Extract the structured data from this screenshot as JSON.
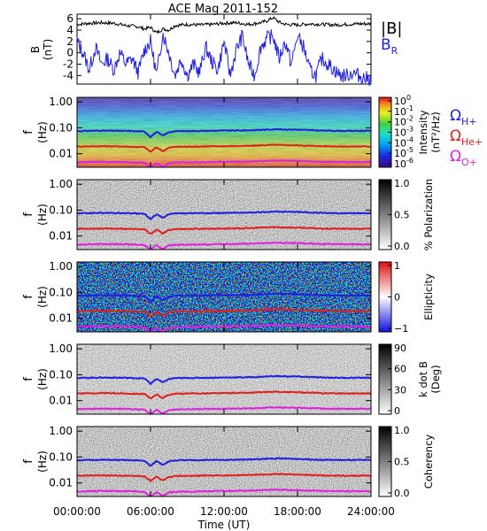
{
  "chart_data": [
    {
      "panel": "B",
      "type": "line",
      "title": "ACE Mag 2011-152",
      "ylabel": "B",
      "yunit": "(nT)",
      "ylim": [
        -5.5,
        6.8
      ],
      "yticks": [
        "6",
        "4",
        "2",
        "0",
        "-2",
        "-4"
      ],
      "ytick_values": [
        6,
        4,
        2,
        0,
        -2,
        -4
      ],
      "legend": [
        {
          "label": "|B|",
          "color": "#000000"
        },
        {
          "label": "B",
          "sub": "R",
          "color": "#1f1fe0"
        }
      ],
      "series": [
        {
          "name": "|B|",
          "color": "#000000",
          "x_hours": [
            0,
            1,
            2,
            3,
            4,
            5,
            5.5,
            6,
            6.5,
            7,
            7.5,
            8,
            9,
            10,
            11,
            12,
            13,
            14,
            15,
            15.5,
            16,
            16.5,
            17,
            18,
            19,
            20,
            21,
            22,
            23,
            24
          ],
          "values": [
            5.0,
            5.2,
            5.3,
            5.2,
            4.8,
            4.6,
            4.2,
            4.5,
            3.5,
            4.2,
            4.0,
            4.8,
            5.0,
            4.9,
            5.0,
            5.2,
            5.3,
            5.0,
            5.3,
            5.6,
            6.2,
            5.4,
            5.0,
            4.9,
            5.1,
            5.0,
            4.9,
            5.0,
            5.1,
            5.1
          ]
        },
        {
          "name": "BR",
          "color": "#1f1fe0",
          "x_hours": [
            0,
            0.5,
            1,
            1.5,
            2,
            2.5,
            3,
            3.5,
            4,
            4.5,
            5,
            5.5,
            6,
            6.5,
            7,
            7.5,
            8,
            8.5,
            9,
            9.5,
            10,
            10.5,
            11,
            11.5,
            12,
            12.5,
            13,
            13.5,
            14,
            14.5,
            15,
            15.5,
            16,
            16.5,
            17,
            17.5,
            18,
            18.5,
            19,
            19.5,
            20,
            20.5,
            21,
            21.5,
            22,
            22.5,
            23,
            23.5,
            24
          ],
          "values": [
            2.0,
            0.0,
            -3.0,
            1.0,
            -2.0,
            -1.0,
            -3.0,
            0.0,
            -2.0,
            -1.0,
            -3.5,
            0.5,
            2.0,
            -4.0,
            3.5,
            0.0,
            -4.0,
            -1.0,
            -4.0,
            -2.0,
            -3.5,
            1.0,
            -1.5,
            -3.0,
            2.0,
            -4.0,
            0.5,
            3.0,
            -2.0,
            -4.0,
            1.0,
            2.5,
            3.0,
            -1.0,
            2.0,
            -2.0,
            3.0,
            1.0,
            -3.0,
            -4.0,
            -1.0,
            -2.0,
            -3.0,
            -4.0,
            -4.0,
            -3.5,
            -4.0,
            -4.5,
            -4.5
          ]
        }
      ]
    },
    {
      "panel": "intensity",
      "type": "heatmap",
      "ylabel": "f",
      "yunit": "(Hz)",
      "yticks": [
        "1.00",
        "0.10",
        "0.01"
      ],
      "colorbar": {
        "label": "Intensity",
        "unit": "(nT²/Hz)",
        "ticks": [
          {
            "base": "10",
            "exp": "0"
          },
          {
            "base": "10",
            "exp": "-1"
          },
          {
            "base": "10",
            "exp": "-2"
          },
          {
            "base": "10",
            "exp": "-3"
          },
          {
            "base": "10",
            "exp": "-4"
          },
          {
            "base": "10",
            "exp": "-5"
          },
          {
            "base": "10",
            "exp": "-6"
          }
        ]
      },
      "legend": [
        {
          "label": "Ω",
          "sub": "H+",
          "color": "#1f1fe0"
        },
        {
          "label": "Ω",
          "sub": "He+",
          "color": "#e01f1f"
        },
        {
          "label": "Ω",
          "sub": "O+",
          "color": "#e020e0"
        }
      ]
    },
    {
      "panel": "polarization",
      "type": "heatmap",
      "ylabel": "f",
      "yunit": "(Hz)",
      "yticks": [
        "1.00",
        "0.10",
        "0.01"
      ],
      "colorbar": {
        "label": "% Polarization",
        "ticks": [
          "1.0",
          "0.5",
          "0.0"
        ]
      }
    },
    {
      "panel": "ellipticity",
      "type": "heatmap",
      "ylabel": "f",
      "yunit": "(Hz)",
      "yticks": [
        "1.00",
        "0.10",
        "0.01"
      ],
      "colorbar": {
        "label": "Ellipticity",
        "ticks": [
          "1",
          "0",
          "−1"
        ]
      }
    },
    {
      "panel": "kdotb",
      "type": "heatmap",
      "ylabel": "f",
      "yunit": "(Hz)",
      "yticks": [
        "1.00",
        "0.10",
        "0.01"
      ],
      "colorbar": {
        "label": "k dot B",
        "unit": "(Deg)",
        "ticks": [
          "90",
          "60",
          "30",
          "0"
        ]
      }
    },
    {
      "panel": "coherency",
      "type": "heatmap",
      "ylabel": "f",
      "yunit": "(Hz)",
      "yticks": [
        "1.00",
        "0.10",
        "0.01"
      ],
      "colorbar": {
        "label": "Coherency",
        "ticks": [
          "1.0",
          "0.5",
          "0.0"
        ]
      }
    }
  ],
  "gyrofrequency_lines": {
    "x_hours": [
      0,
      2,
      4,
      5.5,
      6,
      6.5,
      7,
      7.5,
      8,
      10,
      12,
      14,
      15,
      16,
      18,
      20,
      22,
      24
    ],
    "H+": {
      "color": "#1f1fe0",
      "values": [
        0.075,
        0.078,
        0.076,
        0.072,
        0.045,
        0.07,
        0.05,
        0.068,
        0.074,
        0.076,
        0.078,
        0.08,
        0.083,
        0.088,
        0.085,
        0.078,
        0.076,
        0.077
      ]
    },
    "He+": {
      "color": "#e01f1f",
      "values": [
        0.019,
        0.0195,
        0.019,
        0.018,
        0.012,
        0.0175,
        0.0125,
        0.017,
        0.0185,
        0.019,
        0.0195,
        0.02,
        0.021,
        0.022,
        0.021,
        0.0195,
        0.019,
        0.019
      ]
    },
    "O+": {
      "color": "#e020e0",
      "values": [
        0.0047,
        0.0049,
        0.0048,
        0.0045,
        0.003,
        0.0044,
        0.0031,
        0.0043,
        0.0046,
        0.0047,
        0.0049,
        0.005,
        0.0052,
        0.0055,
        0.0053,
        0.0049,
        0.0048,
        0.0048
      ]
    }
  },
  "xaxis": {
    "label": "Time (UT)",
    "ticks": [
      "00:00:00",
      "06:00:00",
      "12:00:00",
      "18:00:00",
      "24:00:00"
    ],
    "tick_hours": [
      0,
      6,
      12,
      18,
      24
    ]
  }
}
